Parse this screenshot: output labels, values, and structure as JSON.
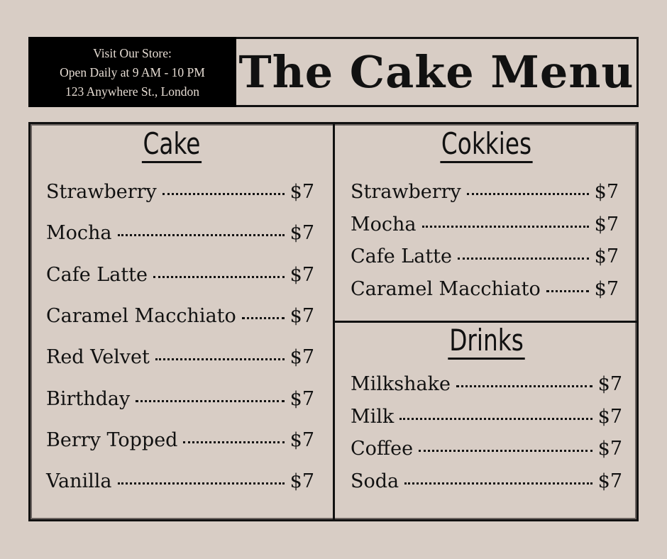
{
  "store_info": {
    "heading": "Visit Our Store:",
    "hours": "Open Daily at 9 AM - 10 PM",
    "address": "123 Anywhere St., London"
  },
  "title": "The Cake Menu",
  "colors": {
    "background": "#d8cdc5",
    "ink": "#111111",
    "info_bg": "#000000"
  },
  "sections": {
    "cake": {
      "heading": "Cake",
      "items": [
        {
          "name": "Strawberry",
          "price": "$7"
        },
        {
          "name": "Mocha",
          "price": "$7"
        },
        {
          "name": "Cafe Latte",
          "price": "$7"
        },
        {
          "name": "Caramel Macchiato",
          "price": "$7"
        },
        {
          "name": "Red Velvet",
          "price": "$7"
        },
        {
          "name": "Birthday",
          "price": "$7"
        },
        {
          "name": "Berry Topped",
          "price": "$7"
        },
        {
          "name": "Vanilla",
          "price": "$7"
        }
      ]
    },
    "cookies": {
      "heading": "Cokkies",
      "items": [
        {
          "name": "Strawberry",
          "price": "$7"
        },
        {
          "name": "Mocha",
          "price": "$7"
        },
        {
          "name": "Cafe Latte",
          "price": "$7"
        },
        {
          "name": "Caramel Macchiato",
          "price": "$7"
        }
      ]
    },
    "drinks": {
      "heading": "Drinks",
      "items": [
        {
          "name": "Milkshake",
          "price": "$7"
        },
        {
          "name": "Milk",
          "price": "$7"
        },
        {
          "name": "Coffee",
          "price": "$7"
        },
        {
          "name": "Soda",
          "price": "$7"
        }
      ]
    }
  }
}
